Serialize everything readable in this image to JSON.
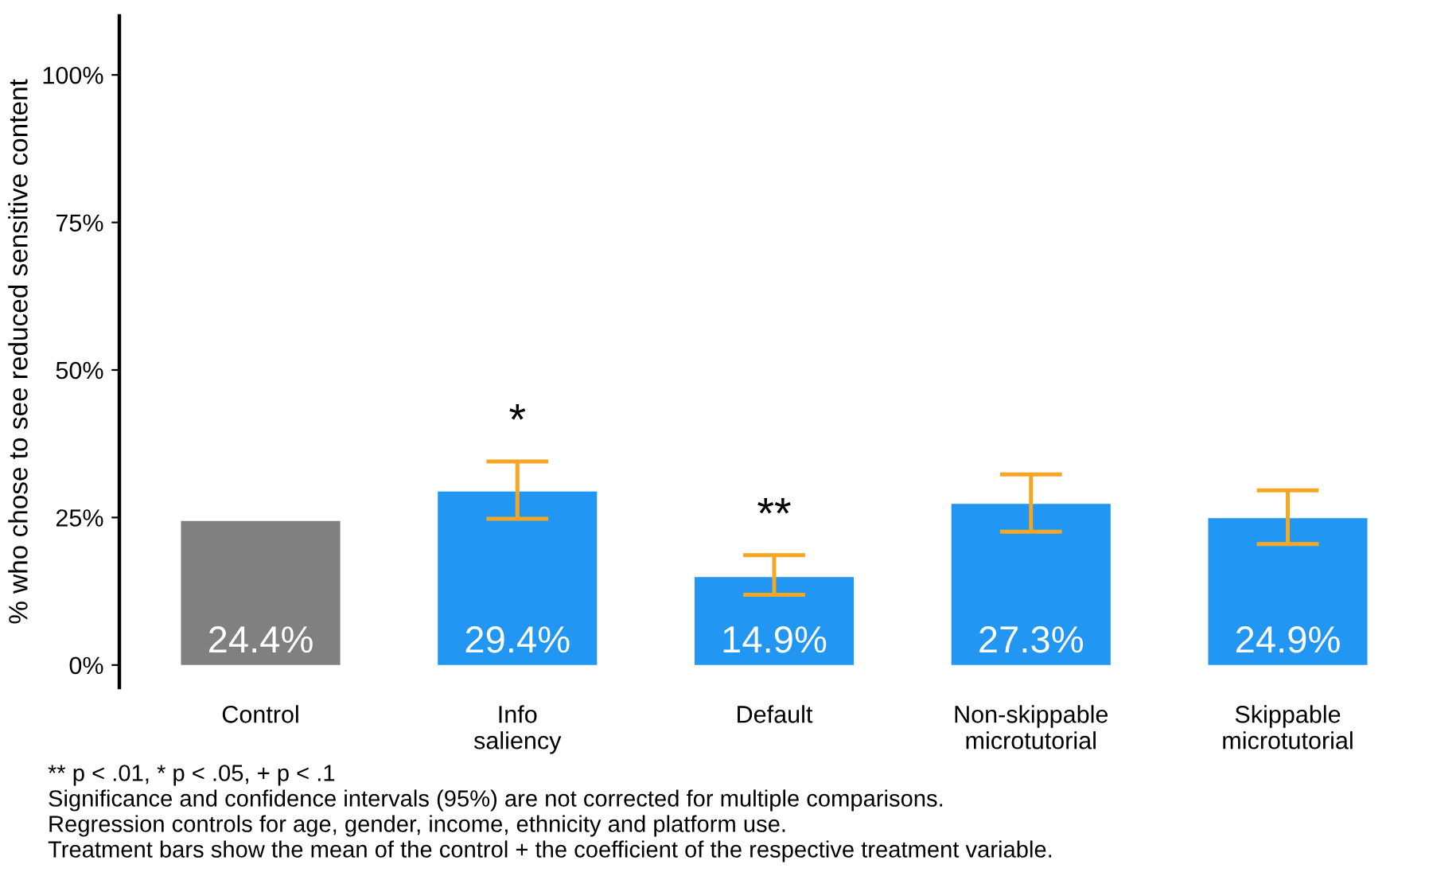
{
  "chart_data": {
    "type": "bar",
    "ylabel": "% who chose to see reduced sensitive content",
    "categories": [
      "Control",
      "Info\nsaliency",
      "Default",
      "Non-skippable\nmicrotutorial",
      "Skippable\nmicrotutorial"
    ],
    "values": [
      24.4,
      29.4,
      14.9,
      27.3,
      24.9
    ],
    "colors": [
      "#808080",
      "#2196f3",
      "#2196f3",
      "#2196f3",
      "#2196f3"
    ],
    "value_labels": [
      "24.4%",
      "29.4%",
      "14.9%",
      "27.3%",
      "24.9%"
    ],
    "errors": [
      null,
      [
        24.8,
        34.5
      ],
      [
        11.9,
        18.6
      ],
      [
        22.6,
        32.3
      ],
      [
        20.5,
        29.6
      ]
    ],
    "ylim": [
      -3.8,
      110
    ],
    "yticks": [
      {
        "value": 0,
        "label": "0%"
      },
      {
        "value": 25,
        "label": "25%"
      },
      {
        "value": 50,
        "label": "50%"
      },
      {
        "value": 75,
        "label": "75%"
      },
      {
        "value": 100,
        "label": "100%"
      }
    ],
    "grid": false,
    "annotations": [
      {
        "text": "*",
        "x": "Info\nsaliency",
        "y": 34.5
      },
      {
        "text": "**",
        "x": "Default",
        "y": 18.6
      },
      "** p < .01, * p < .05, + p < .1",
      "Significance and confidence intervals (95%) are not corrected for multiple comparisons.",
      "Regression controls for age, gender, income, ethnicity and platform use.",
      "Treatment bars show the mean of the control + the coefficient of the respective treatment variable."
    ]
  }
}
